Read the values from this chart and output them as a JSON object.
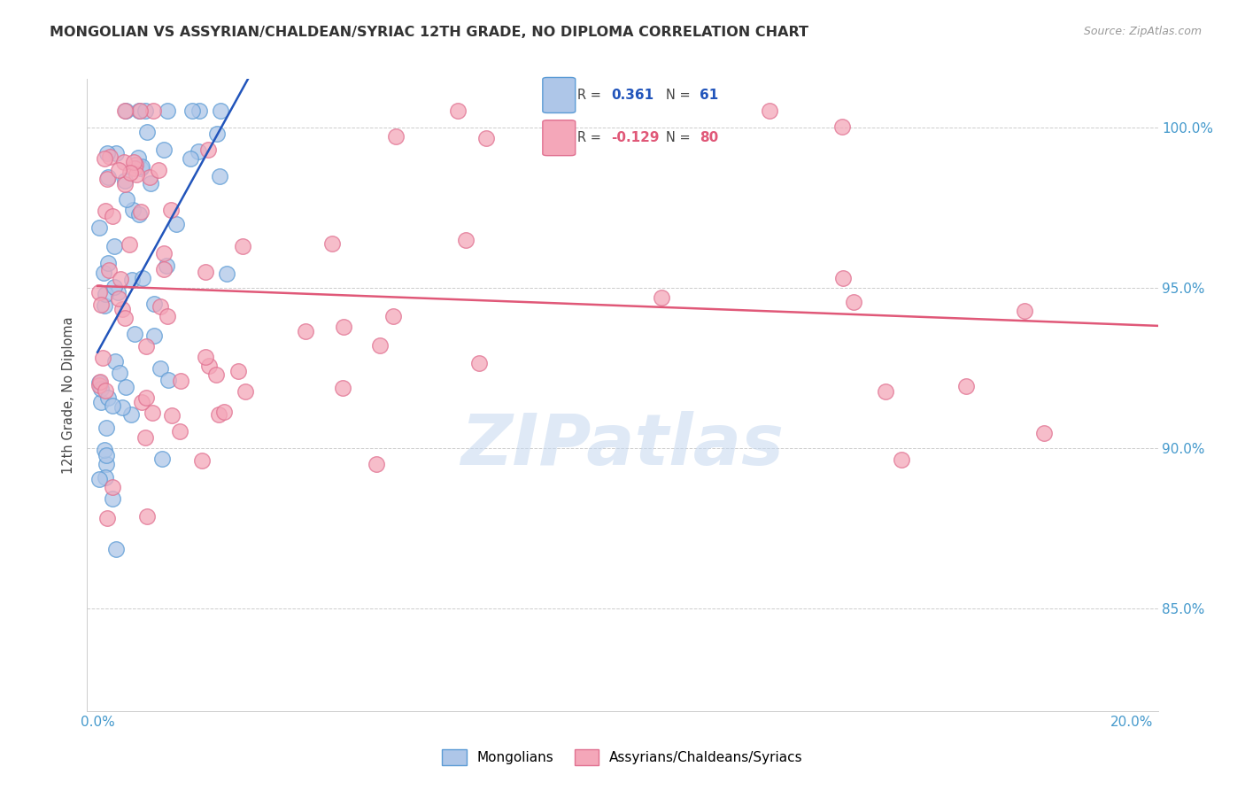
{
  "title": "MONGOLIAN VS ASSYRIAN/CHALDEAN/SYRIAC 12TH GRADE, NO DIPLOMA CORRELATION CHART",
  "source": "Source: ZipAtlas.com",
  "ylabel": "12th Grade, No Diploma",
  "xlim_min": -0.002,
  "xlim_max": 0.205,
  "ylim_min": 0.818,
  "ylim_max": 1.015,
  "xtick_positions": [
    0.0,
    0.04,
    0.08,
    0.12,
    0.16,
    0.2
  ],
  "xtick_labels": [
    "0.0%",
    "",
    "",
    "",
    "",
    "20.0%"
  ],
  "ytick_positions": [
    0.85,
    0.9,
    0.95,
    1.0
  ],
  "ytick_labels": [
    "85.0%",
    "90.0%",
    "95.0%",
    "100.0%"
  ],
  "mongolian_face": "#aec6e8",
  "mongolian_edge": "#5b9bd5",
  "assyrian_face": "#f4a7b9",
  "assyrian_edge": "#e07090",
  "regression_blue": "#2255bb",
  "regression_pink": "#e05878",
  "r_mongolian": 0.361,
  "n_mongolian": 61,
  "r_assyrian": -0.129,
  "n_assyrian": 80,
  "grid_color": "#cccccc",
  "tick_color": "#4499cc",
  "title_color": "#333333",
  "source_color": "#999999",
  "legend_labels": [
    "Mongolians",
    "Assyrians/Chaldeans/Syriacs"
  ],
  "watermark": "ZIPatlas",
  "scatter_size": 160,
  "alpha": 0.75,
  "reg_line_x0": 0.0,
  "reg_line_x1": 0.205
}
